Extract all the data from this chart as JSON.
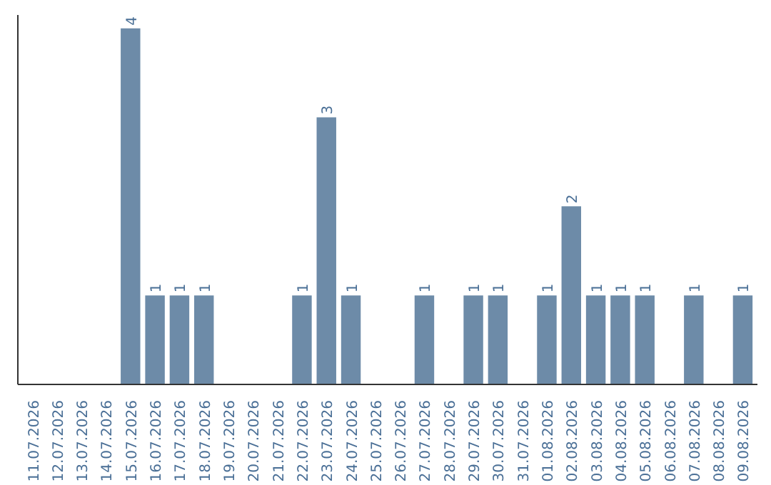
{
  "chart_data": {
    "type": "bar",
    "categories": [
      "11.07.2026",
      "12.07.2026",
      "13.07.2026",
      "14.07.2026",
      "15.07.2026",
      "16.07.2026",
      "17.07.2026",
      "18.07.2026",
      "19.07.2026",
      "20.07.2026",
      "21.07.2026",
      "22.07.2026",
      "23.07.2026",
      "24.07.2026",
      "25.07.2026",
      "26.07.2026",
      "27.07.2026",
      "28.07.2026",
      "29.07.2026",
      "30.07.2026",
      "31.07.2026",
      "01.08.2026",
      "02.08.2026",
      "03.08.2026",
      "04.08.2026",
      "05.08.2026",
      "06.08.2026",
      "07.08.2026",
      "08.08.2026",
      "09.08.2026"
    ],
    "values": [
      0,
      0,
      0,
      0,
      4,
      1,
      1,
      1,
      0,
      0,
      0,
      1,
      3,
      1,
      0,
      0,
      1,
      0,
      1,
      1,
      0,
      1,
      2,
      1,
      1,
      1,
      0,
      1,
      0,
      1
    ],
    "value_labels": [
      null,
      null,
      null,
      null,
      "4",
      "1",
      "1",
      "1",
      null,
      null,
      null,
      "1",
      "3",
      "1",
      null,
      null,
      "1",
      null,
      "1",
      "1",
      null,
      "1",
      "2",
      "1",
      "1",
      "1",
      null,
      "1",
      null,
      "1"
    ],
    "color": "#6d8ba8",
    "ylim": [
      0,
      4.15
    ],
    "tick_labels": "x",
    "grid": false
  }
}
